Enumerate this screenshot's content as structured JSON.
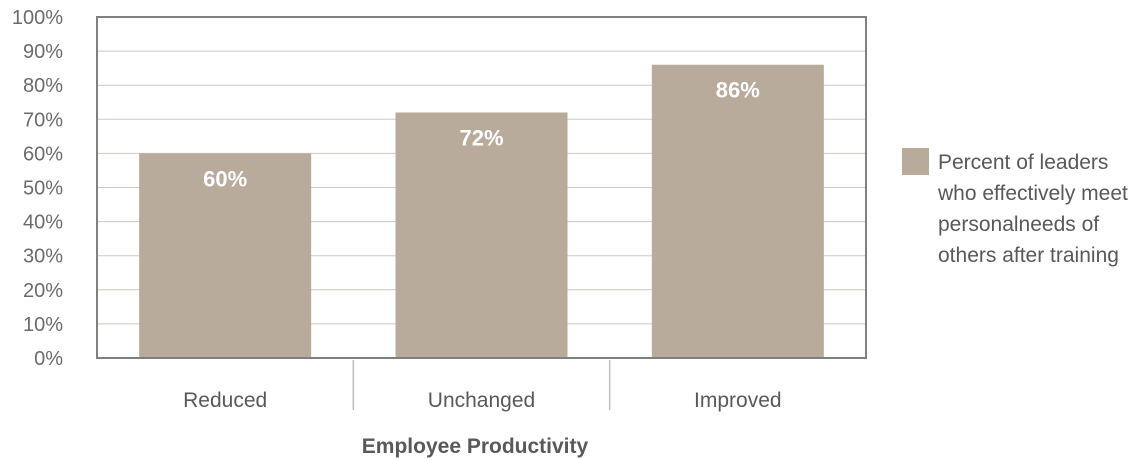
{
  "chart_data": {
    "type": "bar",
    "categories": [
      "Reduced",
      "Unchanged",
      "Improved"
    ],
    "series": [
      {
        "name": "Percent of leaders who effectively meet personalneeds of others after training",
        "values": [
          60,
          72,
          86
        ],
        "data_labels": [
          "60%",
          "72%",
          "86%"
        ]
      }
    ],
    "xlabel": "Employee Productivity",
    "ylabel": "",
    "ylim": [
      0,
      100
    ],
    "yticks": [
      0,
      10,
      20,
      30,
      40,
      50,
      60,
      70,
      80,
      90,
      100
    ],
    "ytick_labels": [
      "0%",
      "10%",
      "20%",
      "30%",
      "40%",
      "50%",
      "60%",
      "70%",
      "80%",
      "90%",
      "100%"
    ],
    "grid": true,
    "legend_position": "right",
    "legend_lines": [
      "Percent of leaders",
      "who effectively meet",
      "personalneeds of",
      "others after training"
    ],
    "colors": {
      "bar": "#b8ab9c",
      "grid": "#cfc8bf",
      "axis": "#7f7f7f",
      "frame": "#808080"
    }
  }
}
